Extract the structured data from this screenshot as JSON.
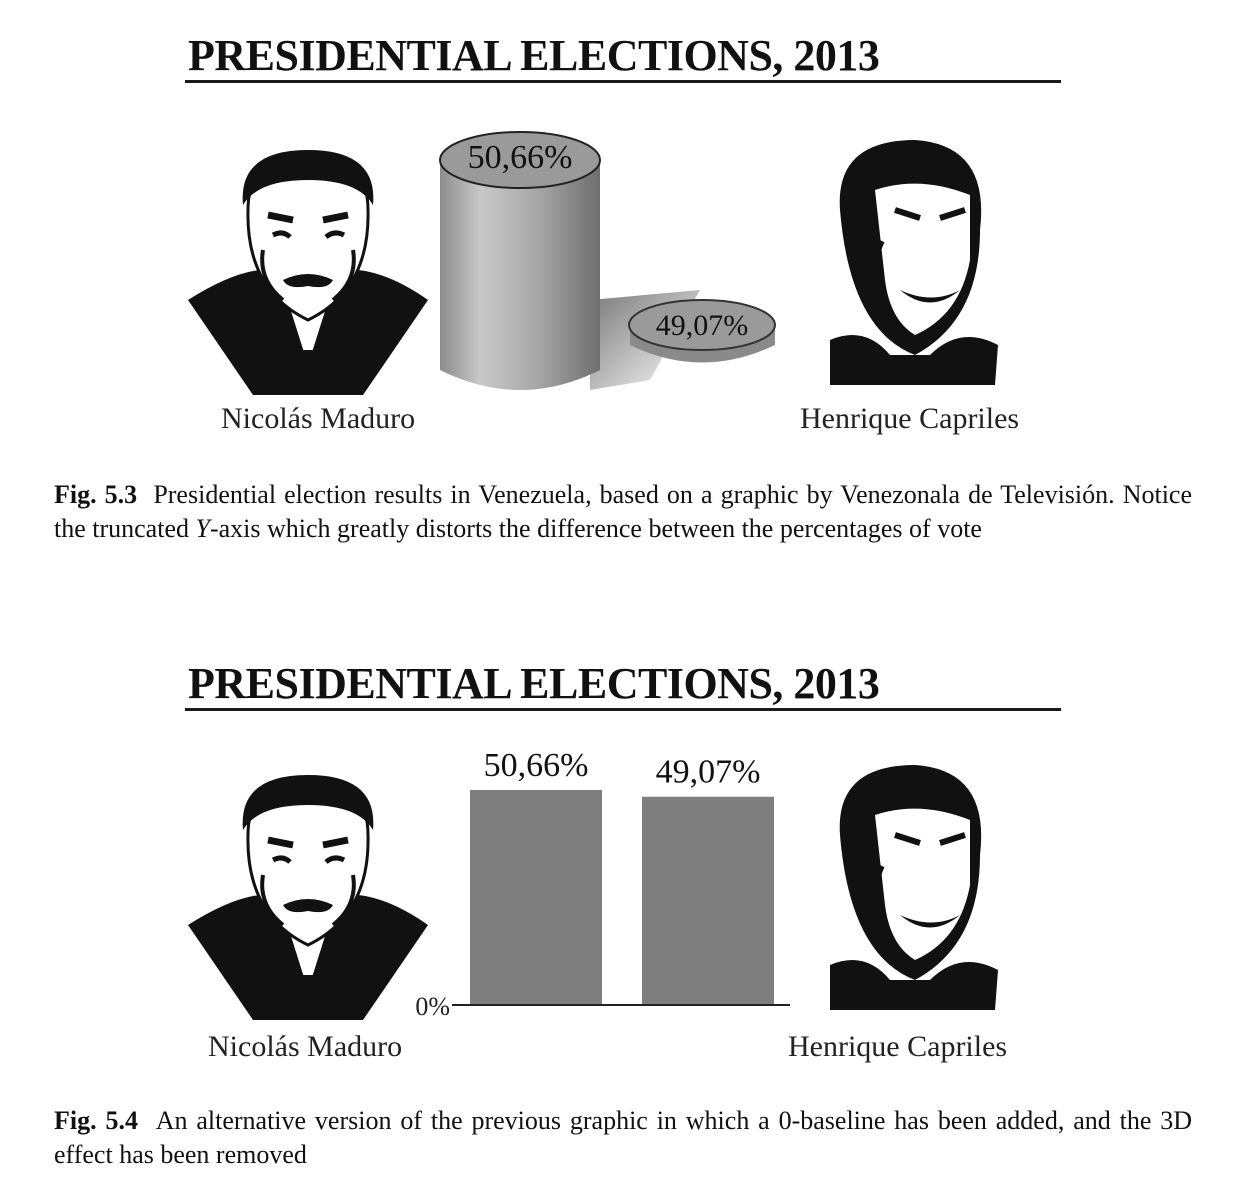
{
  "figures": [
    {
      "title": "PRESIDENTIAL ELECTIONS, 2013",
      "left_name": "Nicolás Maduro",
      "right_name": "Henrique Capriles",
      "caption_label": "Fig. 5.3",
      "caption_text_before": "Presidential election results in Venezuela, based on a graphic by Venezonala de Televisión. Notice the truncated ",
      "caption_italic": "Y",
      "caption_text_after": "-axis which greatly distorts the difference between the percentages of vote"
    },
    {
      "title": "PRESIDENTIAL ELECTIONS, 2013",
      "left_name": "Nicolás Maduro",
      "right_name": "Henrique Capriles",
      "baseline_label": "0%",
      "caption_label": "Fig. 5.4",
      "caption_text": "An alternative version of the previous graphic in which a 0-baseline has been added, and the 3D effect has been removed"
    }
  ],
  "chart_data": [
    {
      "type": "bar",
      "style": "3d-cylinder",
      "y_axis": "truncated",
      "title": "PRESIDENTIAL ELECTIONS, 2013",
      "categories": [
        "Nicolás Maduro",
        "Henrique Capriles"
      ],
      "values": [
        50.66,
        49.07
      ],
      "data_labels": [
        "50,66%",
        "49,07%"
      ]
    },
    {
      "type": "bar",
      "style": "flat",
      "title": "PRESIDENTIAL ELECTIONS, 2013",
      "categories": [
        "Nicolás Maduro",
        "Henrique Capriles"
      ],
      "values": [
        50.66,
        49.07
      ],
      "data_labels": [
        "50,66%",
        "49,07%"
      ],
      "ylim": [
        0,
        50.66
      ],
      "baseline_label": "0%",
      "bar_color": "#7f7f7f"
    }
  ],
  "colors": {
    "bar": "#7f7f7f",
    "ink": "#111111"
  }
}
